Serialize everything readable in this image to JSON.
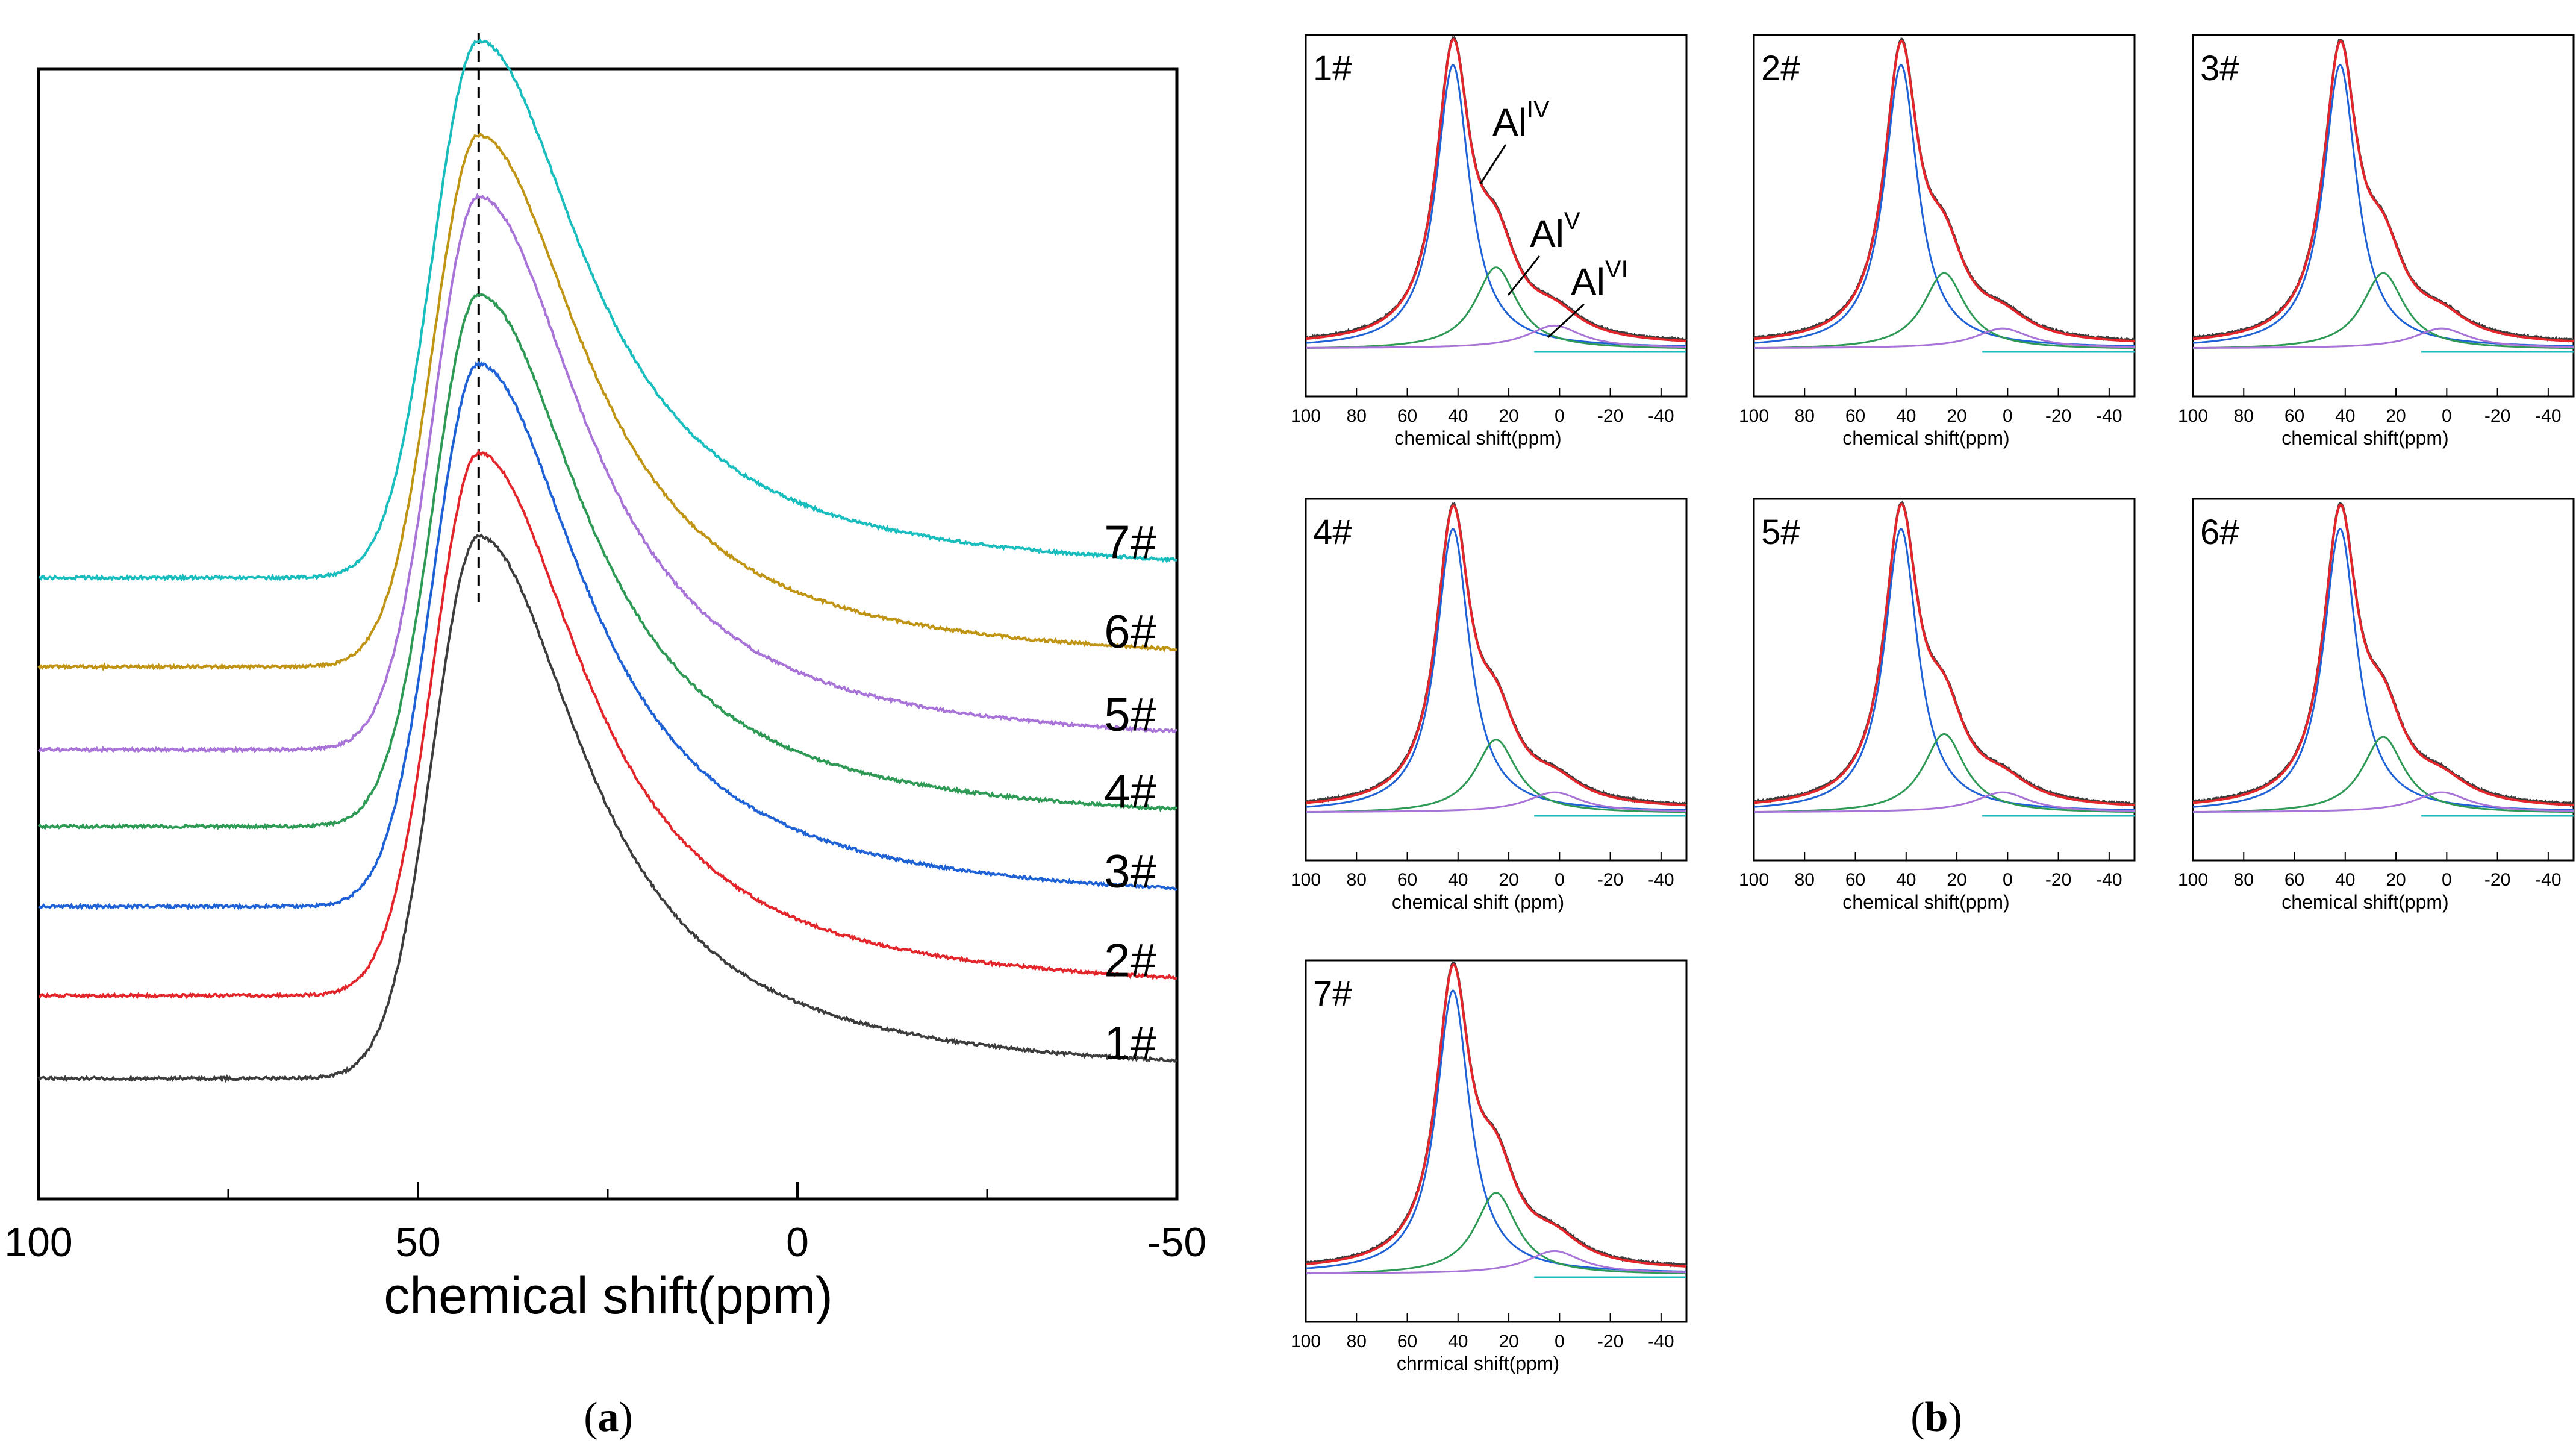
{
  "chart_data": [
    {
      "type": "line",
      "panel_label": "a",
      "xlabel": "chemical shift(ppm)",
      "ylabel": "",
      "xlim": [
        100,
        -50
      ],
      "x_ticks": [
        100,
        50,
        0,
        -50
      ],
      "x_minor_ticks": [
        75,
        25,
        -25
      ],
      "peak_marker_x": 42,
      "grid": false,
      "series": [
        {
          "name": "1#",
          "color": "#3d3d3d",
          "baseline": 0.0,
          "peak_x": 42,
          "peak_height": 1.0,
          "tail_end": 0.0
        },
        {
          "name": "2#",
          "color": "#e3262b",
          "baseline": 0.27,
          "peak_x": 42,
          "peak_height": 1.0,
          "tail_end": 0.27
        },
        {
          "name": "3#",
          "color": "#1f62d6",
          "baseline": 0.56,
          "peak_x": 42,
          "peak_height": 1.0,
          "tail_end": 0.56
        },
        {
          "name": "4#",
          "color": "#2e9a56",
          "baseline": 0.82,
          "peak_x": 42,
          "peak_height": 0.98,
          "tail_end": 0.82
        },
        {
          "name": "5#",
          "color": "#a874d8",
          "baseline": 1.07,
          "peak_x": 42,
          "peak_height": 1.02,
          "tail_end": 1.07
        },
        {
          "name": "6#",
          "color": "#c09415",
          "baseline": 1.34,
          "peak_x": 42,
          "peak_height": 0.98,
          "tail_end": 1.34
        },
        {
          "name": "7#",
          "color": "#19bdbd",
          "baseline": 1.63,
          "peak_x": 42,
          "peak_height": 0.99,
          "tail_end": 1.63
        }
      ]
    },
    {
      "type": "line",
      "panel_label": "b",
      "x_ticks": [
        100,
        80,
        60,
        40,
        20,
        0,
        -20,
        -40
      ],
      "xlim": [
        100,
        -50
      ],
      "legend_colors": {
        "fit": "#e3262b",
        "exp": "#3d3d3d",
        "AlIV": "#1f62d6",
        "AlV": "#2e9a56",
        "AlVI": "#a874d8",
        "tail": "#19bdbd"
      },
      "component_labels": [
        {
          "base": "Al",
          "sup": "IV",
          "position_ppm": 42
        },
        {
          "base": "Al",
          "sup": "V",
          "position_ppm": 25
        },
        {
          "base": "Al",
          "sup": "VI",
          "position_ppm": 2
        }
      ],
      "panels": [
        {
          "label": "1#",
          "xlabel": "chemical shift(ppm)",
          "components": [
            {
              "name": "AlIV",
              "center": 42,
              "amp": 1.0,
              "width": 8
            },
            {
              "name": "AlV",
              "center": 25,
              "amp": 0.29,
              "width": 10
            },
            {
              "name": "AlVI",
              "center": 2,
              "amp": 0.08,
              "width": 13
            }
          ]
        },
        {
          "label": "2#",
          "xlabel": "chemical shift(ppm)",
          "components": [
            {
              "name": "AlIV",
              "center": 42,
              "amp": 1.0,
              "width": 8
            },
            {
              "name": "AlV",
              "center": 25,
              "amp": 0.27,
              "width": 10
            },
            {
              "name": "AlVI",
              "center": 2,
              "amp": 0.07,
              "width": 13
            }
          ]
        },
        {
          "label": "3#",
          "xlabel": "chemical shift(ppm)",
          "components": [
            {
              "name": "AlIV",
              "center": 42,
              "amp": 1.0,
              "width": 8
            },
            {
              "name": "AlV",
              "center": 25,
              "amp": 0.27,
              "width": 10
            },
            {
              "name": "AlVI",
              "center": 2,
              "amp": 0.07,
              "width": 13
            }
          ]
        },
        {
          "label": "4#",
          "xlabel": "chemical shift (ppm)",
          "components": [
            {
              "name": "AlIV",
              "center": 42,
              "amp": 1.0,
              "width": 8
            },
            {
              "name": "AlV",
              "center": 25,
              "amp": 0.26,
              "width": 10
            },
            {
              "name": "AlVI",
              "center": 2,
              "amp": 0.07,
              "width": 13
            }
          ]
        },
        {
          "label": "5#",
          "xlabel": "chemical shift(ppm)",
          "components": [
            {
              "name": "AlIV",
              "center": 42,
              "amp": 1.0,
              "width": 8
            },
            {
              "name": "AlV",
              "center": 25,
              "amp": 0.28,
              "width": 10
            },
            {
              "name": "AlVI",
              "center": 2,
              "amp": 0.07,
              "width": 13
            }
          ]
        },
        {
          "label": "6#",
          "xlabel": "chemical shift(ppm)",
          "components": [
            {
              "name": "AlIV",
              "center": 42,
              "amp": 1.0,
              "width": 8
            },
            {
              "name": "AlV",
              "center": 25,
              "amp": 0.27,
              "width": 10
            },
            {
              "name": "AlVI",
              "center": 2,
              "amp": 0.07,
              "width": 13
            }
          ]
        },
        {
          "label": "7#",
          "xlabel": "chrmical shift(ppm)",
          "components": [
            {
              "name": "AlIV",
              "center": 42,
              "amp": 1.0,
              "width": 8
            },
            {
              "name": "AlV",
              "center": 25,
              "amp": 0.29,
              "width": 10
            },
            {
              "name": "AlVI",
              "center": 2,
              "amp": 0.08,
              "width": 13
            }
          ]
        }
      ]
    }
  ],
  "captions": {
    "a": "a",
    "b": "b"
  }
}
